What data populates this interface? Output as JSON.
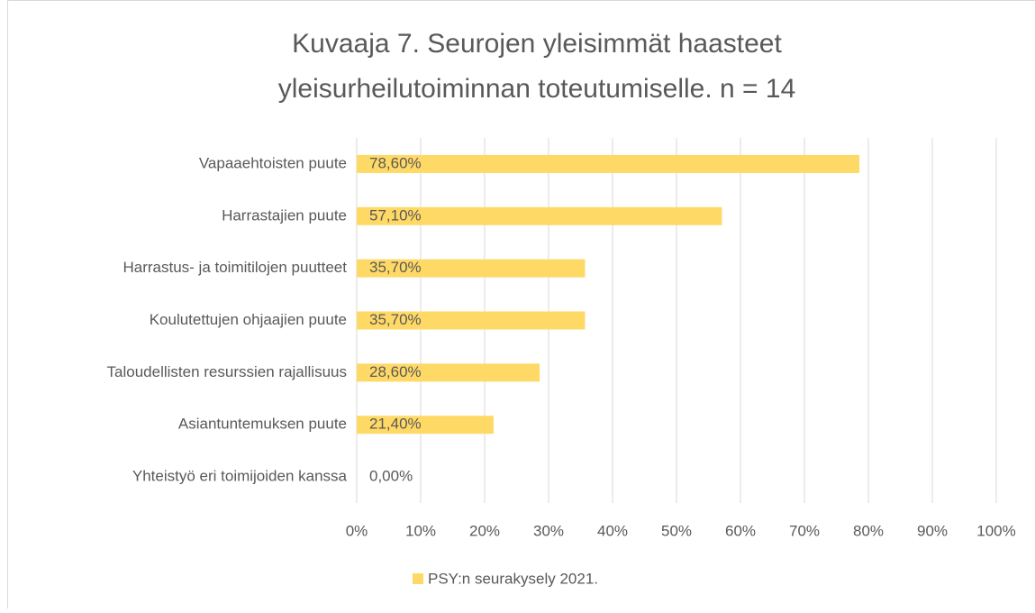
{
  "chart_data": {
    "type": "bar",
    "orientation": "horizontal",
    "title": [
      "Kuvaaja 7. Seurojen yleisimmät haasteet",
      "yleisurheilutoiminnan toteutumiselle. n = 14"
    ],
    "categories": [
      "Vapaaehtoisten puute",
      "Harrastajien puute",
      "Harrastus- ja toimitilojen puutteet",
      "Koulutettujen ohjaajien puute",
      "Taloudellisten resurssien rajallisuus",
      "Asiantuntemuksen puute",
      "Yhteistyö eri toimijoiden kanssa"
    ],
    "series": [
      {
        "name": "PSY:n seurakysely 2021.",
        "color": "#ffd966",
        "values": [
          78.6,
          57.1,
          35.7,
          35.7,
          28.6,
          21.4,
          0
        ],
        "value_labels": [
          "78,60%",
          "57,10%",
          "35,70%",
          "35,70%",
          "28,60%",
          "21,40%",
          "0,00%"
        ]
      }
    ],
    "xlim": [
      0,
      100
    ],
    "xticks": [
      {
        "value": 0,
        "label": "0%"
      },
      {
        "value": 10,
        "label": "10%"
      },
      {
        "value": 20,
        "label": "20%"
      },
      {
        "value": 30,
        "label": "30%"
      },
      {
        "value": 40,
        "label": "40%"
      },
      {
        "value": 50,
        "label": "50%"
      },
      {
        "value": 60,
        "label": "60%"
      },
      {
        "value": 70,
        "label": "70%"
      },
      {
        "value": 80,
        "label": "80%"
      },
      {
        "value": 90,
        "label": "90%"
      },
      {
        "value": 100,
        "label": "100%"
      }
    ],
    "grid": true,
    "legend": "bottom"
  }
}
